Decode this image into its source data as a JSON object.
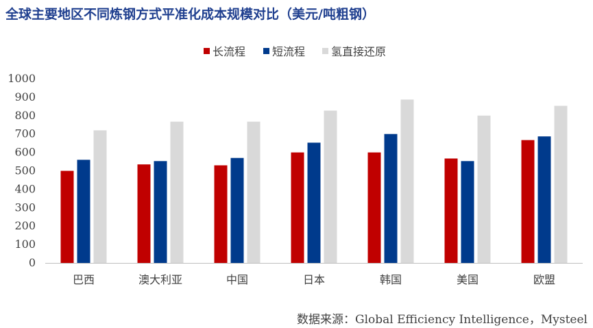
{
  "title": "全球主要地区不同炼钢方式平准化成本规模对比（美元/吨粗钢）",
  "source": "数据来源：Global Efficiency Intelligence，Mysteel",
  "colors": {
    "long": "#c00000",
    "short": "#003a8c",
    "hydrogen": "#d9d9d9",
    "axis": "#bfbfbf",
    "text": "#404040"
  },
  "chart_data": {
    "type": "bar",
    "title": "全球主要地区不同炼钢方式平准化成本规模对比（美元/吨粗钢）",
    "xlabel": "",
    "ylabel": "",
    "ylim": [
      0,
      1000
    ],
    "yticks": [
      0,
      100,
      200,
      300,
      400,
      500,
      600,
      700,
      800,
      900,
      1000
    ],
    "grid": false,
    "legend_position": "top-center",
    "categories": [
      "巴西",
      "澳大利亚",
      "中国",
      "日本",
      "韩国",
      "美国",
      "欧盟"
    ],
    "series": [
      {
        "name": "长流程",
        "color": "#c00000",
        "values": [
          500,
          535,
          530,
          600,
          600,
          567,
          667
        ]
      },
      {
        "name": "短流程",
        "color": "#003a8c",
        "values": [
          560,
          553,
          570,
          653,
          700,
          553,
          687
        ]
      },
      {
        "name": "氢直接还原",
        "color": "#d9d9d9",
        "values": [
          720,
          767,
          767,
          827,
          887,
          800,
          853
        ]
      }
    ]
  }
}
